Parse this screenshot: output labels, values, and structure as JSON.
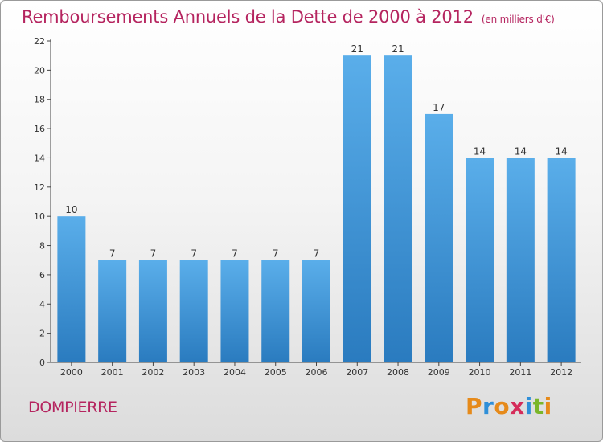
{
  "header": {
    "title": "Remboursements Annuels de la Dette de 2000 à 2012",
    "unit": "(en milliers d'€)"
  },
  "footer": {
    "commune": "DOMPIERRE",
    "logo_text": "Proxiti"
  },
  "colors": {
    "title": "#b5245f",
    "bar_top": "#5aaeea",
    "bar_bottom": "#2a7bbf",
    "logo_letters": [
      "#e68a1a",
      "#2f8fd8",
      "#e68a1a",
      "#d52c5a",
      "#2f8fd8",
      "#7bb62a",
      "#e68a1a"
    ]
  },
  "chart_data": {
    "type": "bar",
    "categories": [
      "2000",
      "2001",
      "2002",
      "2003",
      "2004",
      "2005",
      "2006",
      "2007",
      "2008",
      "2009",
      "2010",
      "2011",
      "2012"
    ],
    "values": [
      10,
      7,
      7,
      7,
      7,
      7,
      7,
      21,
      21,
      17,
      14,
      14,
      14
    ],
    "ylim": [
      0,
      22
    ],
    "yticks": [
      0,
      2,
      4,
      6,
      8,
      10,
      12,
      14,
      16,
      18,
      20,
      22
    ],
    "grid": false,
    "data_labels": true
  }
}
